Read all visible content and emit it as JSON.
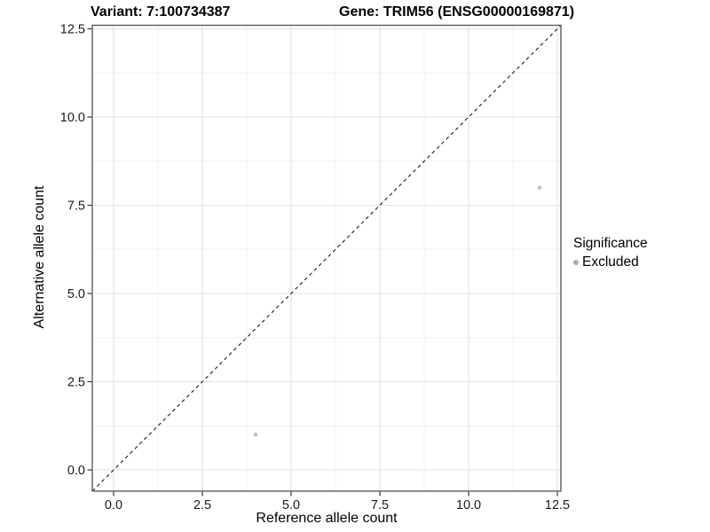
{
  "chart_data": {
    "type": "scatter",
    "title_left": "Variant: 7:100734387",
    "title_right": "Gene: TRIM56 (ENSG00000169871)",
    "xlabel": "Reference allele count",
    "ylabel": "Alternative allele count",
    "xlim": [
      -0.6,
      12.6
    ],
    "ylim": [
      -0.6,
      12.6
    ],
    "x_ticks": [
      0,
      2.5,
      5,
      7.5,
      10,
      12.5
    ],
    "x_tick_labels": [
      "0.0",
      "2.5",
      "5.0",
      "7.5",
      "10.0",
      "12.5"
    ],
    "y_ticks": [
      0,
      2.5,
      5,
      7.5,
      10,
      12.5
    ],
    "y_tick_labels": [
      "0.0",
      "2.5",
      "5.0",
      "7.5",
      "10.0",
      "12.5"
    ],
    "minor_ticks": [
      1.25,
      3.75,
      6.25,
      8.75,
      11.25
    ],
    "grid": "on",
    "points": [
      {
        "x": 4,
        "y": 1,
        "significance": "Excluded"
      },
      {
        "x": 12,
        "y": 8,
        "significance": "Excluded"
      }
    ],
    "identity_line": {
      "type": "abline",
      "slope": 1,
      "intercept": 0,
      "linestyle": "dashed"
    },
    "legend": {
      "title": "Significance",
      "position": "right",
      "entries": [
        {
          "label": "Excluded",
          "color": "#b3b3b3"
        }
      ]
    },
    "colors": {
      "point": "#c1c1c1",
      "legend_key": "#adadad",
      "panel_border": "#5c5c5c",
      "tick_mark": "#333333",
      "grid_major": "#e2e2e2",
      "grid_minor": "#efefef",
      "identity_line": "#1a1a1a",
      "background": "#ffffff"
    }
  }
}
